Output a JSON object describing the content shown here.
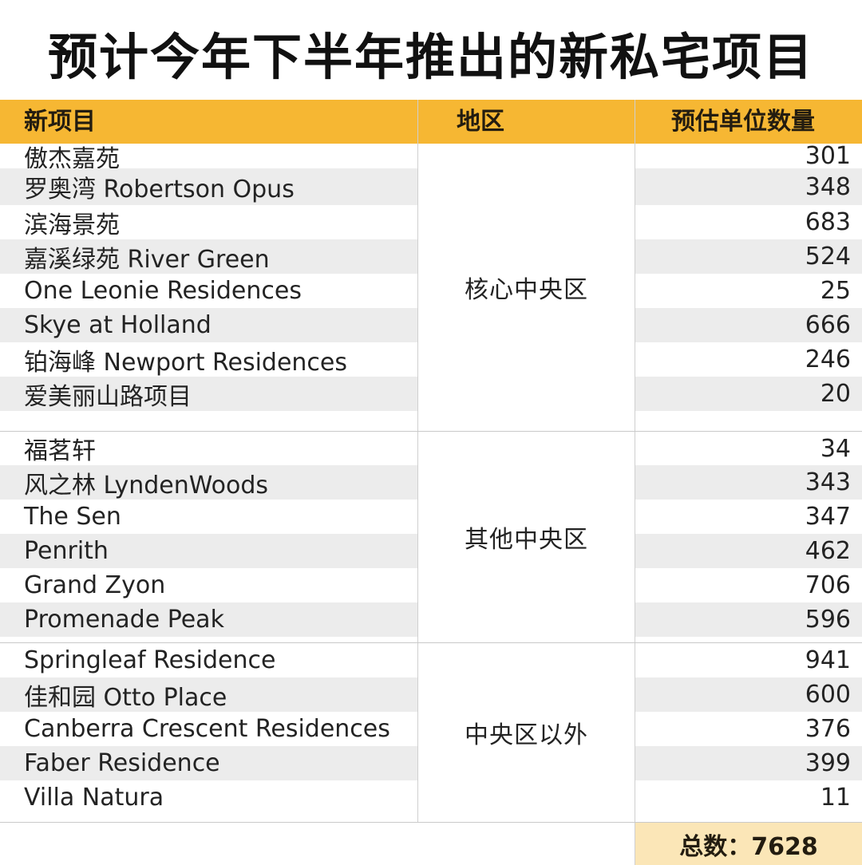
{
  "title": "预计今年下半年推出的新私宅项目",
  "headers": {
    "project": "新项目",
    "region": "地区",
    "units": "预估单位数量"
  },
  "groups": [
    {
      "region": "核心中央区",
      "rows": [
        {
          "name": "傲杰嘉苑",
          "units": "301"
        },
        {
          "name": "罗奥湾 Robertson Opus",
          "units": "348"
        },
        {
          "name": "滨海景苑",
          "units": "683"
        },
        {
          "name": "嘉溪绿苑 River Green",
          "units": "524"
        },
        {
          "name": "One Leonie Residences",
          "units": "25"
        },
        {
          "name": "Skye at Holland",
          "units": "666"
        },
        {
          "name": "铂海峰 Newport Residences",
          "units": "246"
        },
        {
          "name": "爱美丽山路项目",
          "units": "20"
        }
      ]
    },
    {
      "region": "其他中央区",
      "rows": [
        {
          "name": "福茗轩",
          "units": "34"
        },
        {
          "name": "风之林 LyndenWoods",
          "units": "343"
        },
        {
          "name": "The Sen",
          "units": "347"
        },
        {
          "name": "Penrith",
          "units": "462"
        },
        {
          "name": "Grand Zyon",
          "units": "706"
        },
        {
          "name": "Promenade Peak",
          "units": "596"
        }
      ]
    },
    {
      "region": "中央区以外",
      "rows": [
        {
          "name": "Springleaf Residence",
          "units": "941"
        },
        {
          "name": "佳和园 Otto Place",
          "units": "600"
        },
        {
          "name": "Canberra Crescent Residences",
          "units": "376"
        },
        {
          "name": "Faber Residence",
          "units": "399"
        },
        {
          "name": "Villa Natura",
          "units": "11"
        }
      ]
    }
  ],
  "total": "总数：7628",
  "colors": {
    "header": "#f6b733",
    "stripe": "#ececec",
    "total_bg": "#fbe6b7"
  }
}
